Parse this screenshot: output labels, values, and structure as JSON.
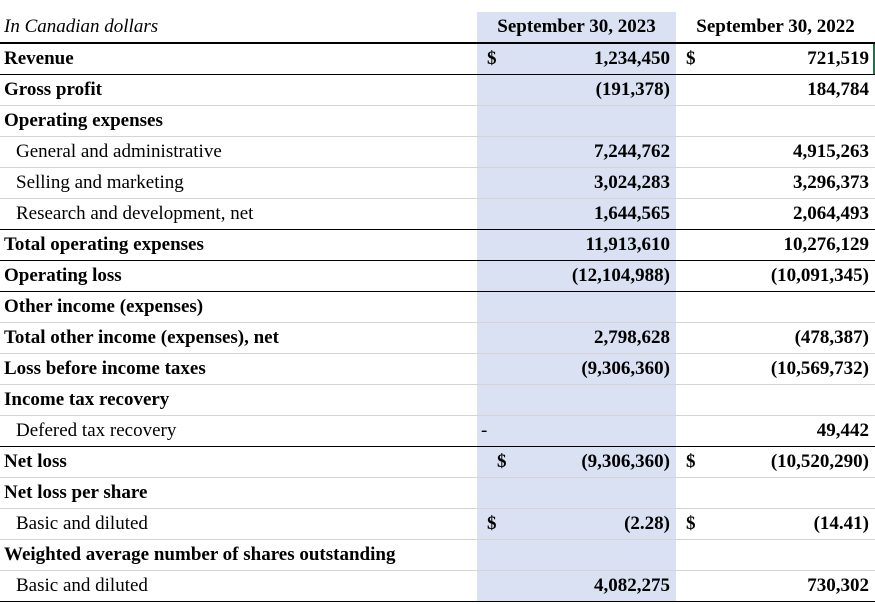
{
  "header": {
    "label": "In Canadian dollars",
    "col1": "September 30, 2023",
    "col2": "September 30, 2022"
  },
  "rows": [
    {
      "label": "Revenue",
      "cur1": "$",
      "v1": "1,234,450",
      "cur2": "$",
      "v2": "721,519"
    },
    {
      "label": "Gross profit",
      "v1": "(191,378)",
      "v2": "184,784"
    },
    {
      "label": "Operating expenses"
    },
    {
      "label": "General and administrative",
      "v1": "7,244,762",
      "v2": "4,915,263"
    },
    {
      "label": "Selling and marketing",
      "v1": "3,024,283",
      "v2": "3,296,373"
    },
    {
      "label": "Research and development, net",
      "v1": "1,644,565",
      "v2": "2,064,493"
    },
    {
      "label": "Total operating expenses",
      "v1": "11,913,610",
      "v2": "10,276,129"
    },
    {
      "label": "Operating loss",
      "v1": "(12,104,988)",
      "v2": "(10,091,345)"
    },
    {
      "label": "Other income (expenses)"
    },
    {
      "label": "Total other income (expenses), net",
      "v1": "2,798,628",
      "v2": "(478,387)"
    },
    {
      "label": "Loss before income taxes",
      "v1": "(9,306,360)",
      "v2": "(10,569,732)"
    },
    {
      "label": "Income tax recovery"
    },
    {
      "label": "Defered tax recovery",
      "v1": "-",
      "v2": "49,442"
    },
    {
      "label": "Net loss",
      "cur1": "$",
      "v1": "(9,306,360)",
      "cur2": "$",
      "v2": "(10,520,290)"
    },
    {
      "label": "Net loss per share"
    },
    {
      "label": "Basic and diluted",
      "cur1": "$",
      "v1": "(2.28)",
      "cur2": "$",
      "v2": "(14.41)"
    },
    {
      "label": "Weighted average number of shares outstanding"
    },
    {
      "label": "Basic and diluted",
      "v1": "4,082,275",
      "v2": "730,302"
    }
  ],
  "colors": {
    "shade": "#d9e1f2",
    "selection": "#217346"
  }
}
